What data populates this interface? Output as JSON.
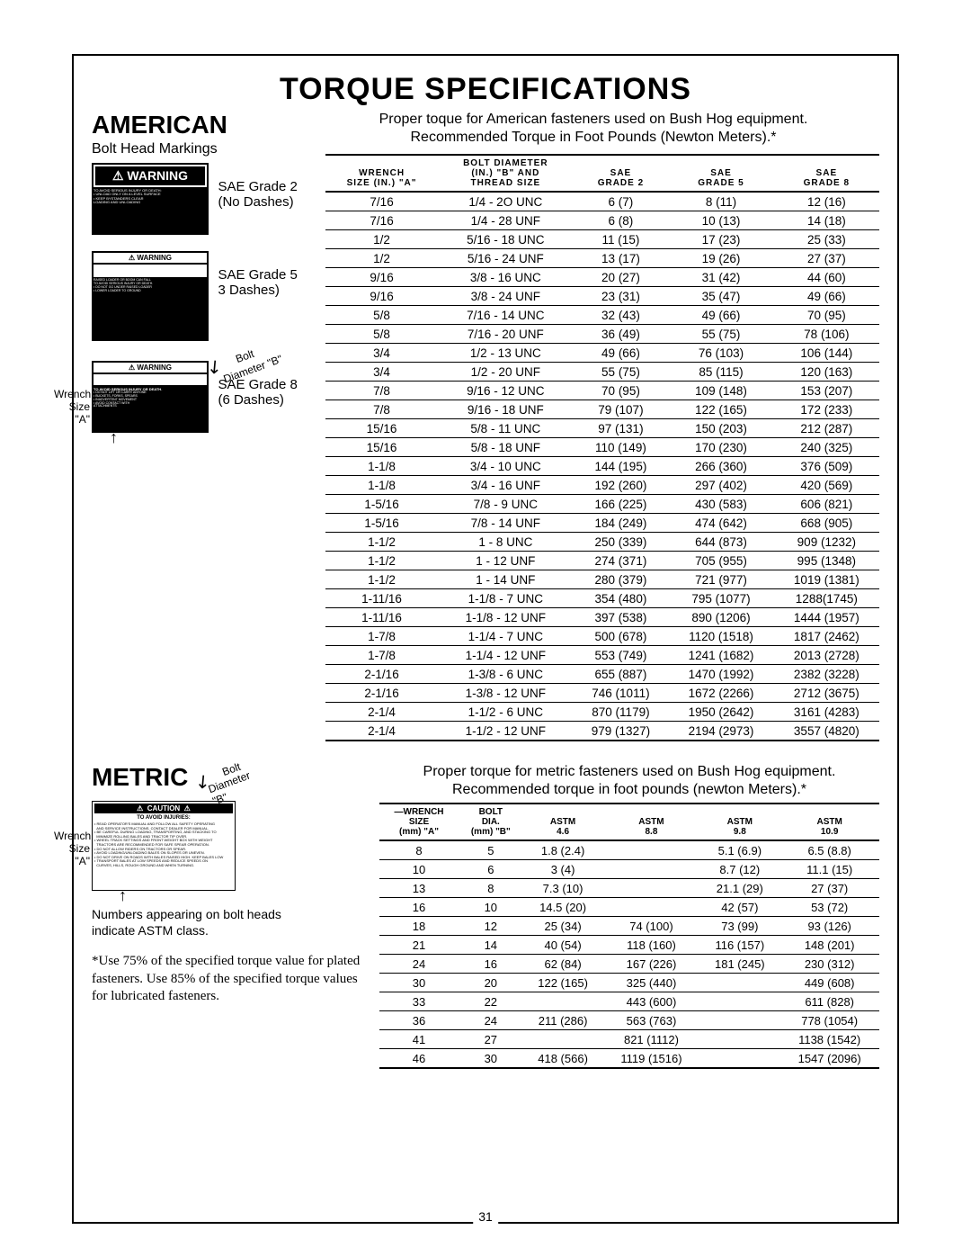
{
  "title": "TORQUE SPECIFICATIONS",
  "american": {
    "heading": "AMERICAN",
    "subheading": "Bolt Head Markings",
    "intro_line1": "Proper toque for American fasteners used on Bush Hog equipment.",
    "intro_line2": "Recommended Torque in Foot Pounds (Newton Meters).*",
    "grade2_label": "SAE Grade 2",
    "grade2_sub": "(No Dashes)",
    "grade5_label": "SAE Grade 5",
    "grade5_sub": "3 Dashes)",
    "grade8_label": "SAE Grade 8",
    "grade8_sub": "(6 Dashes)",
    "bolt_dia_label": "Bolt",
    "dia_b_label": "Diameter \"B\"",
    "wrench_label": "Wrench",
    "size_a_label": "Size \"A\"",
    "columns": {
      "c1a": "WRENCH",
      "c1b": "SIZE (IN.) \"A\"",
      "c2a": "BOLT DIAMETER",
      "c2b": "(IN.) \"B\" AND",
      "c2c": "THREAD SIZE",
      "c3a": "SAE",
      "c3b": "GRADE 2",
      "c4a": "SAE",
      "c4b": "GRADE 5",
      "c5a": "SAE",
      "c5b": "GRADE 8"
    },
    "rows": [
      [
        "7/16",
        "1/4 - 2O UNC",
        "6 (7)",
        "8 (11)",
        "12 (16)"
      ],
      [
        "7/16",
        "1/4 - 28 UNF",
        "6 (8)",
        "10 (13)",
        "14 (18)"
      ],
      [
        "1/2",
        "5/16 - 18 UNC",
        "11 (15)",
        "17 (23)",
        "25 (33)"
      ],
      [
        "1/2",
        "5/16 - 24 UNF",
        "13 (17)",
        "19 (26)",
        "27 (37)"
      ],
      [
        "9/16",
        "3/8 - 16 UNC",
        "20 (27)",
        "31 (42)",
        "44 (60)"
      ],
      [
        "9/16",
        "3/8 - 24 UNF",
        "23 (31)",
        "35 (47)",
        "49 (66)"
      ],
      [
        "5/8",
        "7/16 - 14 UNC",
        "32 (43)",
        "49 (66)",
        "70 (95)"
      ],
      [
        "5/8",
        "7/16 - 20 UNF",
        "36 (49)",
        "55 (75)",
        "78 (106)"
      ],
      [
        "3/4",
        "1/2 - 13 UNC",
        "49 (66)",
        "76 (103)",
        "106 (144)"
      ],
      [
        "3/4",
        "1/2 - 20 UNF",
        "55 (75)",
        "85 (115)",
        "120 (163)"
      ],
      [
        "7/8",
        "9/16 - 12 UNC",
        "70 (95)",
        "109 (148)",
        "153 (207)"
      ],
      [
        "7/8",
        "9/16 - 18 UNF",
        "79 (107)",
        "122 (165)",
        "172 (233)"
      ],
      [
        "15/16",
        "5/8 - 11 UNC",
        "97 (131)",
        "150 (203)",
        "212 (287)"
      ],
      [
        "15/16",
        "5/8 - 18 UNF",
        "110 (149)",
        "170 (230)",
        "240 (325)"
      ],
      [
        "1-1/8",
        "3/4 - 10 UNC",
        "144 (195)",
        "266 (360)",
        "376 (509)"
      ],
      [
        "1-1/8",
        "3/4 - 16 UNF",
        "192 (260)",
        "297 (402)",
        "420 (569)"
      ],
      [
        "1-5/16",
        "7/8 - 9 UNC",
        "166 (225)",
        "430 (583)",
        "606 (821)"
      ],
      [
        "1-5/16",
        "7/8 - 14 UNF",
        "184 (249)",
        "474 (642)",
        "668 (905)"
      ],
      [
        "1-1/2",
        "1 - 8 UNC",
        "250 (339)",
        "644 (873)",
        "909 (1232)"
      ],
      [
        "1-1/2",
        "1 - 12 UNF",
        "274 (371)",
        "705 (955)",
        "995 (1348)"
      ],
      [
        "1-1/2",
        "1 - 14 UNF",
        "280 (379)",
        "721 (977)",
        "1019 (1381)"
      ],
      [
        "1-11/16",
        "1-1/8 - 7 UNC",
        "354 (480)",
        "795 (1077)",
        "1288(1745)"
      ],
      [
        "1-11/16",
        "1-1/8 - 12 UNF",
        "397 (538)",
        "890 (1206)",
        "1444 (1957)"
      ],
      [
        "1-7/8",
        "1-1/4 - 7 UNC",
        "500 (678)",
        "1120 (1518)",
        "1817 (2462)"
      ],
      [
        "1-7/8",
        "1-1/4 - 12 UNF",
        "553 (749)",
        "1241 (1682)",
        "2013 (2728)"
      ],
      [
        "2-1/16",
        "1-3/8 - 6 UNC",
        "655 (887)",
        "1470 (1992)",
        "2382 (3228)"
      ],
      [
        "2-1/16",
        "1-3/8 - 12 UNF",
        "746 (1011)",
        "1672 (2266)",
        "2712 (3675)"
      ],
      [
        "2-1/4",
        "1-1/2 - 6 UNC",
        "870 (1179)",
        "1950 (2642)",
        "3161 (4283)"
      ],
      [
        "2-1/4",
        "1-1/2 - 12 UNF",
        "979 (1327)",
        "2194 (2973)",
        "3557 (4820)"
      ]
    ]
  },
  "metric": {
    "heading": "METRIC",
    "intro_line1": "Proper torque for metric fasteners used on Bush Hog equipment.",
    "intro_line2": "Recommended torque in foot pounds (newton Meters).*",
    "bolt_dia_label": "Bolt",
    "dia_b_label": "Diameter \"B\"",
    "wrench_label": "Wrench",
    "size_a_label": "Size \"A\"",
    "note_line1": "Numbers appearing on bolt heads",
    "note_line2": "indicate ASTM class.",
    "footnote": "*Use 75% of the specified torque value for plated fasteners. Use 85% of the speci­fied torque values for lubricated fasteners.",
    "columns": {
      "c1a": "—WRENCH",
      "c1b": "SIZE",
      "c1c": "(mm) \"A\"",
      "c2a": "BOLT",
      "c2b": "DIA.",
      "c2c": "(mm) \"B\"",
      "c3a": "ASTM",
      "c3b": "4.6",
      "c4a": "ASTM",
      "c4b": "8.8",
      "c5a": "ASTM",
      "c5b": "9.8",
      "c6a": "ASTM",
      "c6b": "10.9"
    },
    "rows": [
      [
        "8",
        "5",
        "1.8 (2.4)",
        "",
        "5.1 (6.9)",
        "6.5 (8.8)"
      ],
      [
        "10",
        "6",
        "3 (4)",
        "",
        "8.7 (12)",
        "11.1 (15)"
      ],
      [
        "13",
        "8",
        "7.3 (10)",
        "",
        "21.1 (29)",
        "27 (37)"
      ],
      [
        "16",
        "10",
        "14.5 (20)",
        "",
        "42 (57)",
        "53 (72)"
      ],
      [
        "18",
        "12",
        "25 (34)",
        "74 (100)",
        "73 (99)",
        "93 (126)"
      ],
      [
        "21",
        "14",
        "40 (54)",
        "118 (160)",
        "116 (157)",
        "148 (201)"
      ],
      [
        "24",
        "16",
        "62 (84)",
        "167 (226)",
        "181 (245)",
        "230 (312)"
      ],
      [
        "30",
        "20",
        "122 (165)",
        "325 (440)",
        "",
        "449 (608)"
      ],
      [
        "33",
        "22",
        "",
        "443 (600)",
        "",
        "611 (828)"
      ],
      [
        "36",
        "24",
        "211 (286)",
        "563 (763)",
        "",
        "778 (1054)"
      ],
      [
        "41",
        "27",
        "",
        "821 (1112)",
        "",
        "1138 (1542)"
      ],
      [
        "46",
        "30",
        "418 (566)",
        "1119 (1516)",
        "",
        "1547 (2096)"
      ]
    ]
  },
  "warning_label": "WARNING",
  "warning_triangle": "⚠",
  "caution_label": "CAUTION",
  "avoid_injuries": "TO AVOID INJURIES:",
  "page_number": "31"
}
